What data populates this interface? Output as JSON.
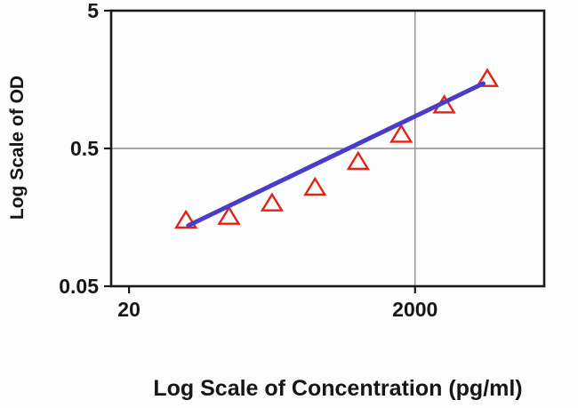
{
  "colors": {
    "page_bg": "#fcfcfc",
    "plot_bg": "#fdfdfd",
    "frame": "#1a1a1a",
    "grid": "#8f8f8f",
    "text": "#161616",
    "marker": "#e02316",
    "trend": "#4a3cc8"
  },
  "chart_data": {
    "type": "scatter",
    "title": "",
    "xlabel": "Log Scale of Concentration  (pg/ml)",
    "ylabel": "Log Scale of OD",
    "x_scale": "log",
    "y_scale": "log",
    "xlim": [
      15,
      16000
    ],
    "ylim": [
      0.05,
      5
    ],
    "grid": "partial",
    "legend": "none",
    "x_ticks": [
      {
        "value": 20,
        "label": "20"
      },
      {
        "value": 2000,
        "label": "2000"
      }
    ],
    "y_ticks": [
      {
        "value": 5,
        "label": "5"
      },
      {
        "value": 0.5,
        "label": "0.5"
      },
      {
        "value": 0.05,
        "label": "0.05"
      }
    ],
    "gridlines": {
      "x_values": [
        2000
      ],
      "y_values": [
        0.5
      ]
    },
    "series": [
      {
        "name": "standard-points",
        "type": "scatter",
        "marker": "open-triangle",
        "color": "#e02316",
        "points": [
          {
            "x": 50,
            "y": 0.15
          },
          {
            "x": 100,
            "y": 0.16
          },
          {
            "x": 200,
            "y": 0.2
          },
          {
            "x": 400,
            "y": 0.26
          },
          {
            "x": 800,
            "y": 0.4
          },
          {
            "x": 1600,
            "y": 0.63
          },
          {
            "x": 3200,
            "y": 1.03
          },
          {
            "x": 6400,
            "y": 1.6
          }
        ]
      },
      {
        "name": "trend-line",
        "type": "line",
        "color": "#4a3cc8",
        "width": 5,
        "points": [
          {
            "x": 52,
            "y": 0.138
          },
          {
            "x": 6000,
            "y": 1.48
          }
        ]
      }
    ]
  }
}
